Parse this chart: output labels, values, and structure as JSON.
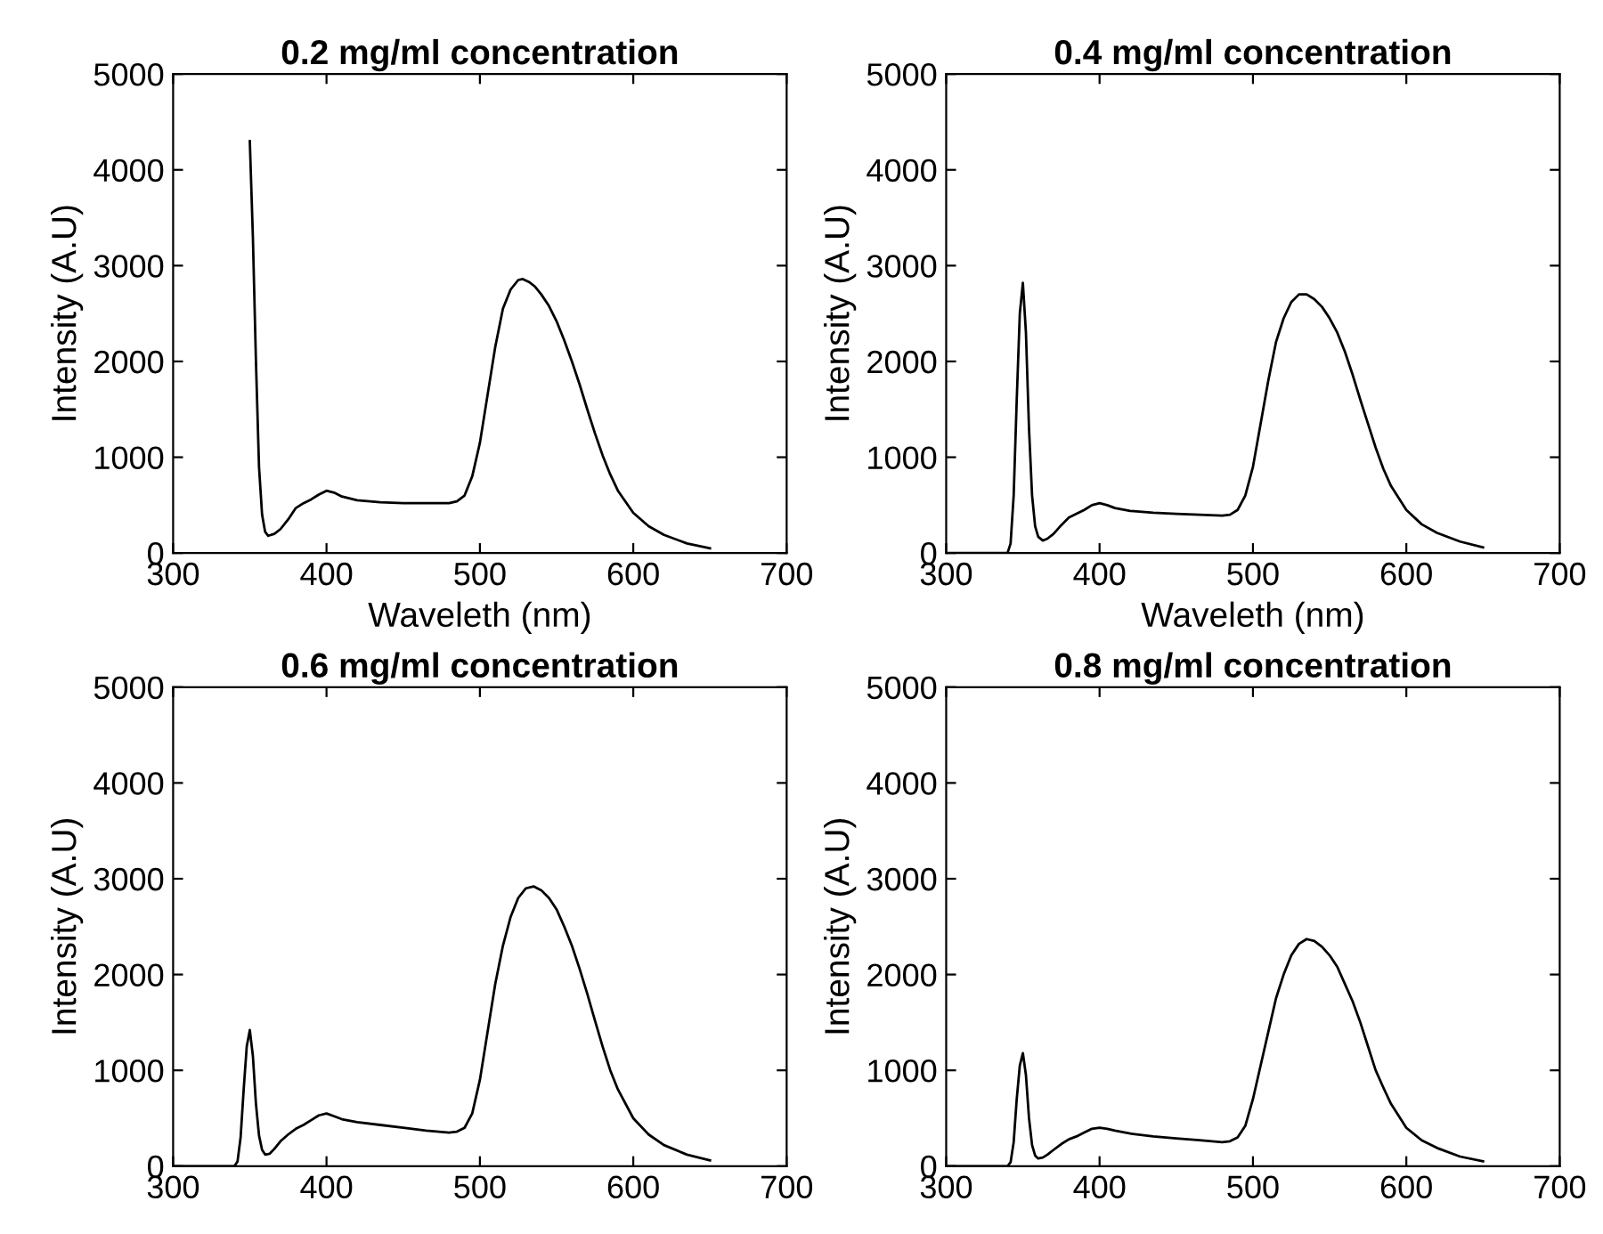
{
  "chart_data": [
    {
      "type": "line",
      "title": "0.2 mg/ml concentration",
      "xlabel": "Waveleth (nm)",
      "ylabel": "Intensity (A.U)",
      "xlim": [
        300,
        700
      ],
      "ylim": [
        0,
        5000
      ],
      "xticks": [
        300,
        400,
        500,
        600,
        700
      ],
      "yticks": [
        0,
        1000,
        2000,
        3000,
        4000,
        5000
      ],
      "series": [
        {
          "color": "#000000",
          "x": [
            350,
            352,
            354,
            356,
            358,
            360,
            362,
            366,
            370,
            375,
            380,
            385,
            390,
            395,
            400,
            405,
            410,
            420,
            435,
            450,
            465,
            480,
            485,
            490,
            495,
            500,
            505,
            510,
            515,
            520,
            525,
            528,
            532,
            536,
            540,
            545,
            550,
            555,
            560,
            565,
            570,
            575,
            580,
            585,
            590,
            600,
            610,
            620,
            635,
            650
          ],
          "values": [
            4300,
            3300,
            2000,
            900,
            400,
            220,
            180,
            200,
            250,
            350,
            470,
            520,
            560,
            610,
            650,
            630,
            590,
            550,
            530,
            520,
            520,
            520,
            540,
            600,
            800,
            1150,
            1650,
            2150,
            2550,
            2750,
            2850,
            2860,
            2830,
            2780,
            2700,
            2580,
            2420,
            2220,
            2000,
            1760,
            1500,
            1250,
            1020,
            820,
            650,
            420,
            280,
            190,
            100,
            50
          ]
        }
      ]
    },
    {
      "type": "line",
      "title": "0.4 mg/ml concentration",
      "xlabel": "Waveleth (nm)",
      "ylabel": "Intensity (A.U)",
      "xlim": [
        300,
        700
      ],
      "ylim": [
        0,
        5000
      ],
      "xticks": [
        300,
        400,
        500,
        600,
        700
      ],
      "yticks": [
        0,
        1000,
        2000,
        3000,
        4000,
        5000
      ],
      "series": [
        {
          "color": "#000000",
          "x": [
            300,
            340,
            342,
            344,
            346,
            348,
            350,
            352,
            354,
            356,
            358,
            360,
            363,
            366,
            370,
            375,
            380,
            385,
            390,
            395,
            400,
            405,
            410,
            420,
            435,
            450,
            465,
            480,
            485,
            490,
            495,
            500,
            505,
            510,
            515,
            520,
            525,
            530,
            535,
            540,
            545,
            550,
            555,
            560,
            565,
            570,
            575,
            580,
            585,
            590,
            600,
            610,
            620,
            635,
            650
          ],
          "values": [
            0,
            0,
            100,
            600,
            1600,
            2500,
            2820,
            2300,
            1300,
            600,
            280,
            170,
            130,
            150,
            200,
            290,
            370,
            410,
            450,
            500,
            520,
            500,
            470,
            440,
            420,
            410,
            400,
            390,
            400,
            450,
            600,
            900,
            1350,
            1800,
            2200,
            2450,
            2620,
            2700,
            2700,
            2650,
            2570,
            2450,
            2300,
            2100,
            1860,
            1600,
            1350,
            1100,
            880,
            700,
            450,
            300,
            210,
            120,
            60
          ]
        }
      ]
    },
    {
      "type": "line",
      "title": "0.6 mg/ml concentration",
      "ylabel": "Intensity (A.U)",
      "xlim": [
        300,
        700
      ],
      "ylim": [
        0,
        5000
      ],
      "xticks": [
        300,
        400,
        500,
        600,
        700
      ],
      "yticks": [
        0,
        1000,
        2000,
        3000,
        4000,
        5000
      ],
      "series": [
        {
          "color": "#000000",
          "x": [
            300,
            340,
            342,
            344,
            346,
            348,
            350,
            352,
            354,
            356,
            358,
            360,
            363,
            366,
            370,
            375,
            380,
            385,
            390,
            395,
            400,
            405,
            410,
            420,
            435,
            450,
            465,
            480,
            485,
            490,
            495,
            500,
            505,
            510,
            515,
            520,
            525,
            530,
            535,
            540,
            545,
            550,
            555,
            560,
            565,
            570,
            575,
            580,
            585,
            590,
            600,
            610,
            620,
            635,
            650
          ],
          "values": [
            0,
            0,
            50,
            300,
            800,
            1250,
            1420,
            1150,
            650,
            320,
            170,
            120,
            130,
            180,
            260,
            330,
            390,
            430,
            480,
            530,
            550,
            520,
            490,
            460,
            430,
            400,
            370,
            350,
            360,
            400,
            550,
            900,
            1400,
            1900,
            2300,
            2600,
            2800,
            2900,
            2920,
            2880,
            2800,
            2680,
            2500,
            2300,
            2060,
            1800,
            1520,
            1250,
            1000,
            800,
            500,
            330,
            220,
            120,
            60
          ]
        }
      ]
    },
    {
      "type": "line",
      "title": "0.8 mg/ml concentration",
      "ylabel": "Intensity (A.U)",
      "xlim": [
        300,
        700
      ],
      "ylim": [
        0,
        5000
      ],
      "xticks": [
        300,
        400,
        500,
        600,
        700
      ],
      "yticks": [
        0,
        1000,
        2000,
        3000,
        4000,
        5000
      ],
      "series": [
        {
          "color": "#000000",
          "x": [
            300,
            340,
            342,
            344,
            346,
            348,
            350,
            352,
            354,
            356,
            358,
            360,
            363,
            366,
            370,
            375,
            380,
            385,
            390,
            395,
            400,
            405,
            410,
            420,
            435,
            450,
            465,
            480,
            485,
            490,
            495,
            500,
            505,
            510,
            515,
            520,
            525,
            530,
            535,
            540,
            545,
            550,
            555,
            560,
            565,
            570,
            575,
            580,
            585,
            590,
            600,
            610,
            620,
            635,
            650
          ],
          "values": [
            0,
            0,
            40,
            250,
            700,
            1050,
            1180,
            950,
            500,
            220,
            110,
            80,
            90,
            120,
            170,
            230,
            280,
            310,
            350,
            390,
            400,
            390,
            370,
            340,
            310,
            290,
            270,
            250,
            260,
            300,
            420,
            700,
            1050,
            1400,
            1750,
            2000,
            2200,
            2320,
            2370,
            2350,
            2290,
            2200,
            2080,
            1900,
            1720,
            1500,
            1250,
            1000,
            820,
            650,
            400,
            270,
            190,
            100,
            50
          ]
        }
      ]
    }
  ]
}
